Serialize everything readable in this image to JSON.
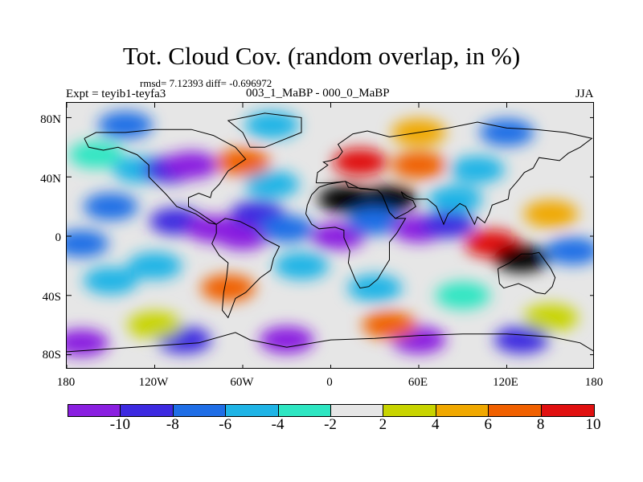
{
  "title": "Tot. Cloud Cov. (random overlap, in %)",
  "stats_line": "rmsd= 7.12393 diff= -0.696972",
  "experiment_label": "Expt = teyib1-teyfa3",
  "difference_label": "003_1_MaBP - 000_0_MaBP",
  "season": "JJA",
  "map": {
    "lat_ticks": [
      "80N",
      "40N",
      "0",
      "40S",
      "80S"
    ],
    "lon_ticks": [
      "180",
      "120W",
      "60W",
      "0",
      "60E",
      "120E",
      "180"
    ],
    "lon_range": [
      -180,
      180
    ],
    "lat_range": [
      -90,
      90
    ],
    "background_color": "#e6e6e6",
    "coastline_color": "#000000",
    "regions": [
      {
        "lon": -160,
        "lat": 55,
        "level": 4
      },
      {
        "lon": -130,
        "lat": 45,
        "level": 3
      },
      {
        "lon": -110,
        "lat": 45,
        "level": 1
      },
      {
        "lon": -95,
        "lat": 48,
        "level": 0
      },
      {
        "lon": -105,
        "lat": 10,
        "level": 1
      },
      {
        "lon": -80,
        "lat": 5,
        "level": 0
      },
      {
        "lon": -60,
        "lat": 0,
        "level": 0
      },
      {
        "lon": -50,
        "lat": 15,
        "level": 1
      },
      {
        "lon": -40,
        "lat": 35,
        "level": 3
      },
      {
        "lon": -30,
        "lat": 5,
        "level": 2
      },
      {
        "lon": -60,
        "lat": 50,
        "level": 8
      },
      {
        "lon": -70,
        "lat": -35,
        "level": 8
      },
      {
        "lon": -150,
        "lat": 20,
        "level": 2
      },
      {
        "lon": -170,
        "lat": -5,
        "level": 2
      },
      {
        "lon": -150,
        "lat": -30,
        "level": 3
      },
      {
        "lon": -20,
        "lat": -20,
        "level": 3
      },
      {
        "lon": 20,
        "lat": 50,
        "level": 9
      },
      {
        "lon": 60,
        "lat": 48,
        "level": 8
      },
      {
        "lon": 10,
        "lat": 25,
        "level": 10
      },
      {
        "lon": 40,
        "lat": 25,
        "level": 10
      },
      {
        "lon": 5,
        "lat": 0,
        "level": 0
      },
      {
        "lon": 30,
        "lat": 10,
        "level": 2
      },
      {
        "lon": 60,
        "lat": 5,
        "level": 0
      },
      {
        "lon": 80,
        "lat": 8,
        "level": 1
      },
      {
        "lon": 85,
        "lat": 25,
        "level": 3
      },
      {
        "lon": 100,
        "lat": 45,
        "level": 3
      },
      {
        "lon": 110,
        "lat": -5,
        "level": 9
      },
      {
        "lon": 130,
        "lat": -15,
        "level": 10
      },
      {
        "lon": 150,
        "lat": 15,
        "level": 7
      },
      {
        "lon": 165,
        "lat": -10,
        "level": 2
      },
      {
        "lon": 120,
        "lat": 70,
        "level": 2
      },
      {
        "lon": 60,
        "lat": 70,
        "level": 7
      },
      {
        "lon": -140,
        "lat": 75,
        "level": 2
      },
      {
        "lon": -40,
        "lat": 75,
        "level": 3
      },
      {
        "lon": 90,
        "lat": -40,
        "level": 4
      },
      {
        "lon": 30,
        "lat": -35,
        "level": 3
      },
      {
        "lon": -120,
        "lat": -20,
        "level": 3
      },
      {
        "lon": -100,
        "lat": -70,
        "level": 1
      },
      {
        "lon": -30,
        "lat": -70,
        "level": 0
      },
      {
        "lon": 60,
        "lat": -70,
        "level": 0
      },
      {
        "lon": 130,
        "lat": -70,
        "level": 1
      },
      {
        "lon": -170,
        "lat": -72,
        "level": 0
      },
      {
        "lon": 40,
        "lat": -60,
        "level": 8
      },
      {
        "lon": -120,
        "lat": -60,
        "level": 6
      },
      {
        "lon": 150,
        "lat": -55,
        "level": 6
      }
    ]
  },
  "colorbar": {
    "colors": [
      "#8a1fe0",
      "#3d2ae0",
      "#1f6ee6",
      "#1fb4e6",
      "#2ee6c2",
      "#e6e6e6",
      "#c8d400",
      "#f0a800",
      "#f06000",
      "#e01010"
    ],
    "labels": [
      "-10",
      "-8",
      "-6",
      "-4",
      "-2",
      "2",
      "4",
      "6",
      "8",
      "10"
    ]
  }
}
